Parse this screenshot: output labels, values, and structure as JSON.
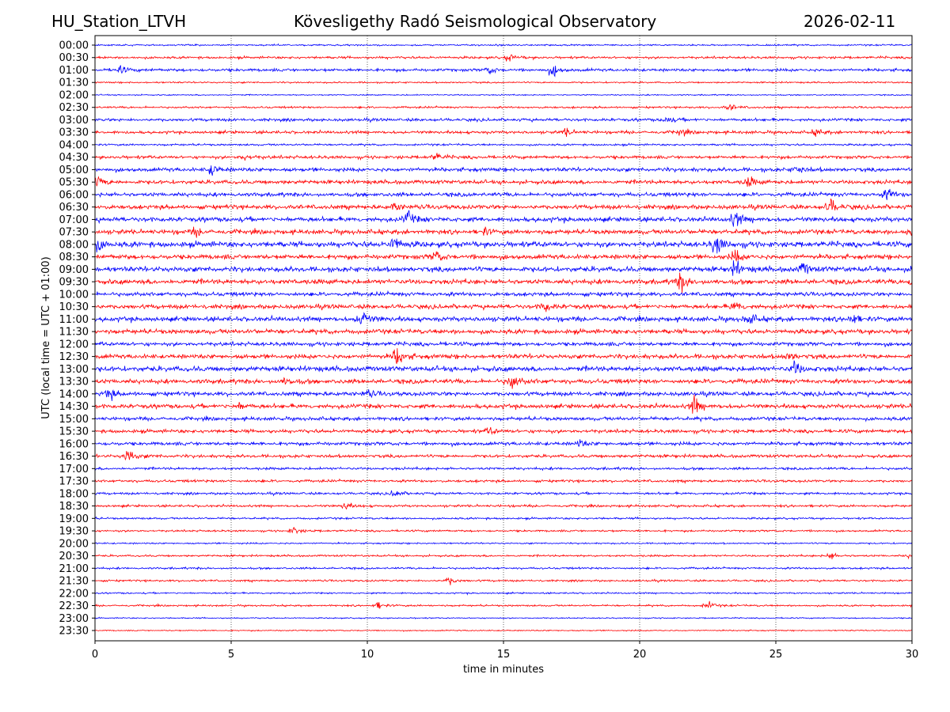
{
  "header": {
    "station": "HU_Station_LTVH",
    "title": "Kövesligethy Radó Seismological Observatory",
    "date": "2026-02-11"
  },
  "chart_data": {
    "type": "line",
    "title": "Kövesligethy Radó Seismological Observatory",
    "xlabel": "time in minutes",
    "ylabel": "UTC (local time = UTC + 01:00)",
    "xlim": [
      0,
      30
    ],
    "xticks": [
      "0",
      "5",
      "10",
      "15",
      "20",
      "25",
      "30"
    ],
    "grid": "vertical dotted at x ticks",
    "colors": [
      "#0000ff",
      "#ff0000"
    ],
    "rows": [
      "00:00",
      "00:30",
      "01:00",
      "01:30",
      "02:00",
      "02:30",
      "03:00",
      "03:30",
      "04:00",
      "04:30",
      "05:00",
      "05:30",
      "06:00",
      "06:30",
      "07:00",
      "07:30",
      "08:00",
      "08:30",
      "09:00",
      "09:30",
      "10:00",
      "10:30",
      "11:00",
      "11:30",
      "12:00",
      "12:30",
      "13:00",
      "13:30",
      "14:00",
      "14:30",
      "15:00",
      "15:30",
      "16:00",
      "16:30",
      "17:00",
      "17:30",
      "18:00",
      "18:30",
      "19:00",
      "19:30",
      "20:00",
      "20:30",
      "21:00",
      "21:30",
      "22:00",
      "22:30",
      "23:00",
      "23:30"
    ],
    "noise_level": [
      0.8,
      1.2,
      1.5,
      0.8,
      0.6,
      1.0,
      1.5,
      1.5,
      1.0,
      1.6,
      2.0,
      2.0,
      2.0,
      2.2,
      2.4,
      2.3,
      2.8,
      2.4,
      2.6,
      2.5,
      2.0,
      2.2,
      2.4,
      2.3,
      2.0,
      2.3,
      2.6,
      2.3,
      2.1,
      2.2,
      1.8,
      1.8,
      1.8,
      1.6,
      1.3,
      1.3,
      1.2,
      1.2,
      1.0,
      1.0,
      0.8,
      1.0,
      1.0,
      1.0,
      0.8,
      0.9,
      0.6,
      0.6
    ],
    "events": [
      [
        1,
        15.2,
        2
      ],
      [
        2,
        16.8,
        3
      ],
      [
        2,
        0.9,
        2
      ],
      [
        2,
        14.5,
        2
      ],
      [
        5,
        23.3,
        2
      ],
      [
        6,
        21,
        2
      ],
      [
        7,
        21.5,
        2
      ],
      [
        7,
        26.5,
        2
      ],
      [
        7,
        17.3,
        2
      ],
      [
        9,
        5.5,
        2
      ],
      [
        9,
        12.5,
        2
      ],
      [
        10,
        4.3,
        3
      ],
      [
        10,
        25.8,
        2
      ],
      [
        11,
        0.1,
        3
      ],
      [
        11,
        24,
        3
      ],
      [
        12,
        29.1,
        3
      ],
      [
        13,
        27,
        4
      ],
      [
        13,
        11,
        2
      ],
      [
        14,
        11.5,
        4
      ],
      [
        14,
        23.5,
        5
      ],
      [
        15,
        30,
        4
      ],
      [
        15,
        3.7,
        2
      ],
      [
        15,
        14.3,
        2
      ],
      [
        16,
        22.8,
        6
      ],
      [
        16,
        11,
        4
      ],
      [
        16,
        0.1,
        3
      ],
      [
        17,
        12.5,
        3
      ],
      [
        17,
        23.5,
        3
      ],
      [
        18,
        23.5,
        4
      ],
      [
        18,
        26,
        3
      ],
      [
        19,
        21.5,
        5
      ],
      [
        19,
        30,
        3
      ],
      [
        21,
        23.5,
        3
      ],
      [
        21,
        16.5,
        3
      ],
      [
        22,
        9.8,
        5
      ],
      [
        22,
        27.8,
        3
      ],
      [
        22,
        24,
        3
      ],
      [
        25,
        11.1,
        6
      ],
      [
        25,
        25.5,
        2
      ],
      [
        26,
        25.7,
        4
      ],
      [
        27,
        15.3,
        5
      ],
      [
        27,
        7,
        2
      ],
      [
        28,
        0.5,
        3
      ],
      [
        28,
        10,
        2
      ],
      [
        29,
        22,
        5
      ],
      [
        29,
        5.3,
        2
      ],
      [
        31,
        14.5,
        2
      ],
      [
        32,
        17.8,
        2
      ],
      [
        33,
        1.2,
        4
      ],
      [
        36,
        11,
        2
      ],
      [
        37,
        9.2,
        2
      ],
      [
        39,
        7.3,
        2
      ],
      [
        41,
        27,
        2
      ],
      [
        41,
        30,
        2
      ],
      [
        43,
        13,
        2
      ],
      [
        45,
        10.4,
        2
      ],
      [
        45,
        22.5,
        2
      ]
    ]
  }
}
